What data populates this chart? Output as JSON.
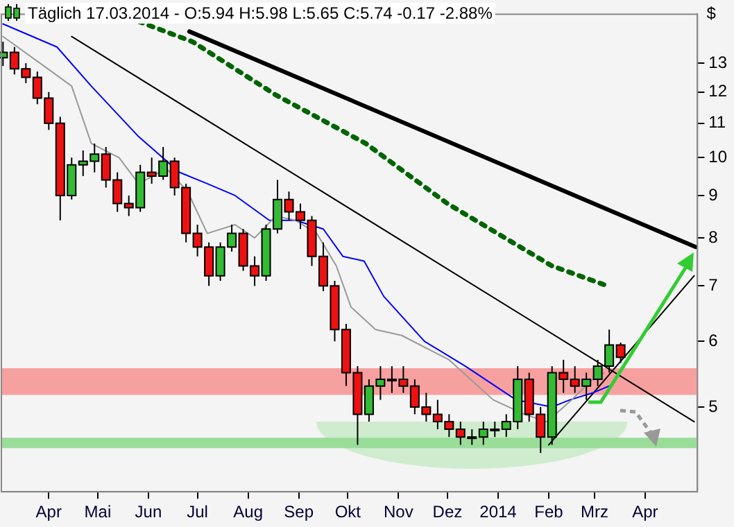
{
  "chart_data": {
    "type": "candlestick",
    "title": "Täglich 17.03.2014 - O:5.94 H:5.98 L:5.65 C:5.74 -0.17 -2.88%",
    "ylabel": "$",
    "x": [
      "2013-03-04",
      "2013-03-11",
      "2013-03-18",
      "2013-03-25",
      "2013-04-01",
      "2013-04-08",
      "2013-04-15",
      "2013-04-22",
      "2013-04-29",
      "2013-05-06",
      "2013-05-13",
      "2013-05-20",
      "2013-05-27",
      "2013-06-03",
      "2013-06-10",
      "2013-06-17",
      "2013-06-24",
      "2013-07-01",
      "2013-07-08",
      "2013-07-15",
      "2013-07-22",
      "2013-07-29",
      "2013-08-05",
      "2013-08-12",
      "2013-08-19",
      "2013-08-26",
      "2013-09-02",
      "2013-09-09",
      "2013-09-16",
      "2013-09-23",
      "2013-09-30",
      "2013-10-07",
      "2013-10-14",
      "2013-10-21",
      "2013-10-28",
      "2013-11-04",
      "2013-11-11",
      "2013-11-18",
      "2013-11-25",
      "2013-12-02",
      "2013-12-09",
      "2013-12-16",
      "2013-12-23",
      "2013-12-30",
      "2014-01-06",
      "2014-01-13",
      "2014-01-20",
      "2014-01-27",
      "2014-02-03",
      "2014-02-10",
      "2014-02-17",
      "2014-02-24",
      "2014-03-03",
      "2014-03-10",
      "2014-03-17"
    ],
    "ohlc": [
      [
        13.2,
        13.8,
        12.9,
        13.4
      ],
      [
        13.4,
        13.6,
        12.6,
        12.8
      ],
      [
        12.8,
        13.0,
        12.3,
        12.5
      ],
      [
        12.5,
        12.7,
        11.6,
        11.8
      ],
      [
        11.8,
        12.0,
        10.8,
        11.0
      ],
      [
        11.0,
        11.2,
        8.4,
        9.0
      ],
      [
        9.0,
        10.0,
        8.9,
        9.8
      ],
      [
        9.8,
        10.2,
        9.5,
        9.9
      ],
      [
        9.9,
        10.4,
        9.6,
        10.1
      ],
      [
        10.1,
        10.3,
        9.2,
        9.4
      ],
      [
        9.4,
        9.6,
        8.6,
        8.8
      ],
      [
        8.8,
        9.0,
        8.5,
        8.7
      ],
      [
        8.7,
        9.8,
        8.6,
        9.6
      ],
      [
        9.6,
        10.0,
        9.3,
        9.5
      ],
      [
        9.5,
        10.3,
        9.4,
        9.9
      ],
      [
        9.9,
        10.0,
        9.0,
        9.2
      ],
      [
        9.2,
        9.3,
        7.9,
        8.1
      ],
      [
        8.1,
        8.3,
        7.6,
        7.8
      ],
      [
        7.8,
        7.9,
        7.0,
        7.2
      ],
      [
        7.2,
        7.9,
        7.1,
        7.8
      ],
      [
        7.8,
        8.3,
        7.7,
        8.1
      ],
      [
        8.1,
        8.2,
        7.3,
        7.4
      ],
      [
        7.4,
        7.6,
        7.0,
        7.2
      ],
      [
        7.2,
        8.3,
        7.1,
        8.2
      ],
      [
        8.2,
        9.4,
        8.1,
        8.9
      ],
      [
        8.9,
        9.1,
        8.4,
        8.6
      ],
      [
        8.6,
        8.8,
        8.2,
        8.4
      ],
      [
        8.4,
        8.5,
        7.4,
        7.6
      ],
      [
        7.6,
        7.9,
        6.9,
        7.0
      ],
      [
        7.0,
        7.1,
        6.0,
        6.2
      ],
      [
        6.2,
        6.3,
        5.3,
        5.5
      ],
      [
        5.5,
        5.6,
        4.5,
        4.9
      ],
      [
        4.9,
        5.4,
        4.8,
        5.3
      ],
      [
        5.3,
        5.6,
        5.1,
        5.4
      ],
      [
        5.4,
        5.6,
        5.2,
        5.4
      ],
      [
        5.4,
        5.6,
        5.2,
        5.3
      ],
      [
        5.3,
        5.4,
        4.9,
        5.0
      ],
      [
        5.0,
        5.2,
        4.8,
        4.9
      ],
      [
        4.9,
        5.1,
        4.7,
        4.8
      ],
      [
        4.8,
        4.9,
        4.6,
        4.7
      ],
      [
        4.7,
        4.8,
        4.5,
        4.6
      ],
      [
        4.6,
        4.7,
        4.5,
        4.6
      ],
      [
        4.6,
        4.8,
        4.5,
        4.7
      ],
      [
        4.7,
        4.8,
        4.6,
        4.7
      ],
      [
        4.7,
        4.9,
        4.6,
        4.8
      ],
      [
        4.8,
        5.6,
        4.7,
        5.4
      ],
      [
        5.4,
        5.5,
        4.8,
        4.9
      ],
      [
        4.9,
        5.0,
        4.4,
        4.6
      ],
      [
        4.6,
        5.6,
        4.5,
        5.5
      ],
      [
        5.5,
        5.7,
        5.2,
        5.4
      ],
      [
        5.4,
        5.6,
        5.2,
        5.3
      ],
      [
        5.3,
        5.5,
        5.1,
        5.4
      ],
      [
        5.4,
        5.7,
        5.3,
        5.6
      ],
      [
        5.6,
        6.2,
        5.5,
        5.94
      ],
      [
        5.94,
        5.98,
        5.65,
        5.74
      ]
    ],
    "series": [
      {
        "type": "line",
        "color": "#999999",
        "x": [
          "2013-03-04",
          "2013-03-29",
          "2013-04-15",
          "2013-04-27",
          "2013-05-14",
          "2013-05-26",
          "2013-06-12",
          "2013-06-25",
          "2013-07-07",
          "2013-07-24",
          "2013-08-05",
          "2013-08-18",
          "2013-08-30",
          "2013-09-12",
          "2013-09-24",
          "2013-10-03",
          "2013-10-18",
          "2013-11-03",
          "2013-12-02",
          "2013-12-29",
          "2014-01-17",
          "2014-01-31",
          "2014-02-15",
          "2014-02-28",
          "2014-03-07"
        ],
        "values": [
          14.0,
          12.9,
          12.2,
          10.4,
          10.0,
          9.3,
          9.7,
          9.1,
          8.1,
          8.3,
          8.0,
          8.5,
          8.4,
          8.1,
          7.4,
          6.6,
          6.2,
          6.1,
          5.7,
          5.1,
          4.9,
          4.8,
          5.1,
          5.4,
          5.5
        ]
      },
      {
        "type": "line",
        "color": "#0000ff",
        "x": [
          "2013-03-04",
          "2013-04-06",
          "2013-04-27",
          "2013-05-26",
          "2013-06-20",
          "2013-07-07",
          "2013-07-24",
          "2013-08-14",
          "2013-08-30",
          "2013-09-16",
          "2013-09-28",
          "2013-10-11",
          "2013-10-23",
          "2013-11-17",
          "2013-12-12",
          "2014-01-12",
          "2014-02-03",
          "2014-02-14",
          "2014-02-28",
          "2014-03-10"
        ],
        "values": [
          14.5,
          13.6,
          12.2,
          10.6,
          9.6,
          9.3,
          9.0,
          8.4,
          8.4,
          8.2,
          7.6,
          7.5,
          6.8,
          6.0,
          5.6,
          5.1,
          5.0,
          5.1,
          5.2,
          5.3
        ]
      },
      {
        "type": "line",
        "color": "#006400",
        "line_style": "dotted",
        "x": [
          "2013-05-26",
          "2013-06-28",
          "2013-08-18",
          "2013-10-12",
          "2013-12-01",
          "2014-02-03",
          "2014-03-09"
        ],
        "values": [
          14.6,
          13.8,
          11.9,
          10.4,
          8.8,
          7.4,
          7.0
        ]
      },
      {
        "type": "line",
        "color": "#000000",
        "x": [
          "2013-06-26",
          "2014-05-02"
        ],
        "values": [
          14.2,
          7.8
        ]
      },
      {
        "type": "line",
        "color": "#000000",
        "x": [
          "2013-04-15",
          "2014-05-01"
        ],
        "values": [
          14.0,
          4.8
        ]
      },
      {
        "type": "line",
        "color": "#000000",
        "x": [
          "2014-02-01",
          "2014-05-01"
        ],
        "values": [
          4.5,
          7.2
        ]
      }
    ],
    "bands": [
      {
        "axis": "y",
        "from": 5.17,
        "to": 5.57,
        "color": "#f6a0a0"
      },
      {
        "axis": "y",
        "from": 4.46,
        "to": 4.59,
        "color": "#99dd99"
      }
    ],
    "log": "y",
    "ylim": [
      3.95,
      14.9
    ],
    "yticks": [
      5,
      6,
      7,
      8,
      9,
      10,
      11,
      12,
      13
    ],
    "xlim": [
      "2013-03-03",
      "2014-05-03"
    ],
    "xticks": [
      {
        "value": "2013-04-01",
        "label": "Apr"
      },
      {
        "value": "2013-05-01",
        "label": "Mai"
      },
      {
        "value": "2013-06-01",
        "label": "Jun"
      },
      {
        "value": "2013-07-01",
        "label": "Jul"
      },
      {
        "value": "2013-08-01",
        "label": "Aug"
      },
      {
        "value": "2013-09-01",
        "label": "Sep"
      },
      {
        "value": "2013-10-01",
        "label": "Okt"
      },
      {
        "value": "2013-11-01",
        "label": "Nov"
      },
      {
        "value": "2013-12-01",
        "label": "Dez"
      },
      {
        "value": "2014-01-01",
        "label": "2014"
      },
      {
        "value": "2014-02-01",
        "label": "Feb"
      },
      {
        "value": "2014-03-01",
        "label": "Mrz"
      },
      {
        "value": "2014-04-01",
        "label": "Apr"
      }
    ],
    "grid": false,
    "legend": false
  }
}
